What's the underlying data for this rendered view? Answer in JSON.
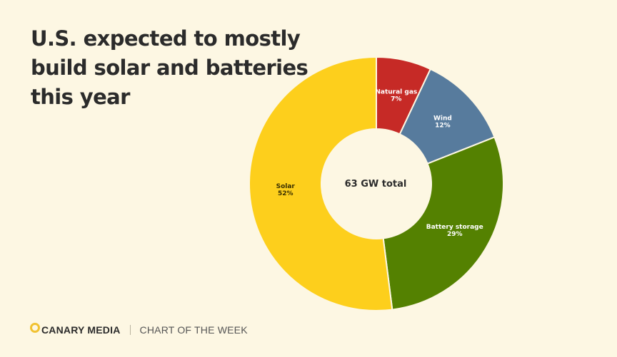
{
  "title_lines": [
    "U.S. expected to mostly",
    "build solar and batteries",
    "this year"
  ],
  "chart_data": {
    "type": "pie",
    "style": "donut",
    "title": "U.S. expected to mostly build solar and batteries this year",
    "center_label": "63 GW total",
    "slices": [
      {
        "label": "Natural gas",
        "percent_label": "7%",
        "value": 7,
        "color": "#c62a26"
      },
      {
        "label": "Wind",
        "percent_label": "12%",
        "value": 12,
        "color": "#577b9d"
      },
      {
        "label": "Battery storage",
        "percent_label": "29%",
        "value": 29,
        "color": "#548101"
      },
      {
        "label": "Solar",
        "percent_label": "52%",
        "value": 52,
        "color": "#fdcf1c"
      }
    ]
  },
  "footer": {
    "brand": "CANARY MEDIA",
    "tagline": "CHART OF THE WEEK"
  },
  "colors": {
    "background": "#fdf7e3",
    "logo_accent": "#f1c232"
  }
}
